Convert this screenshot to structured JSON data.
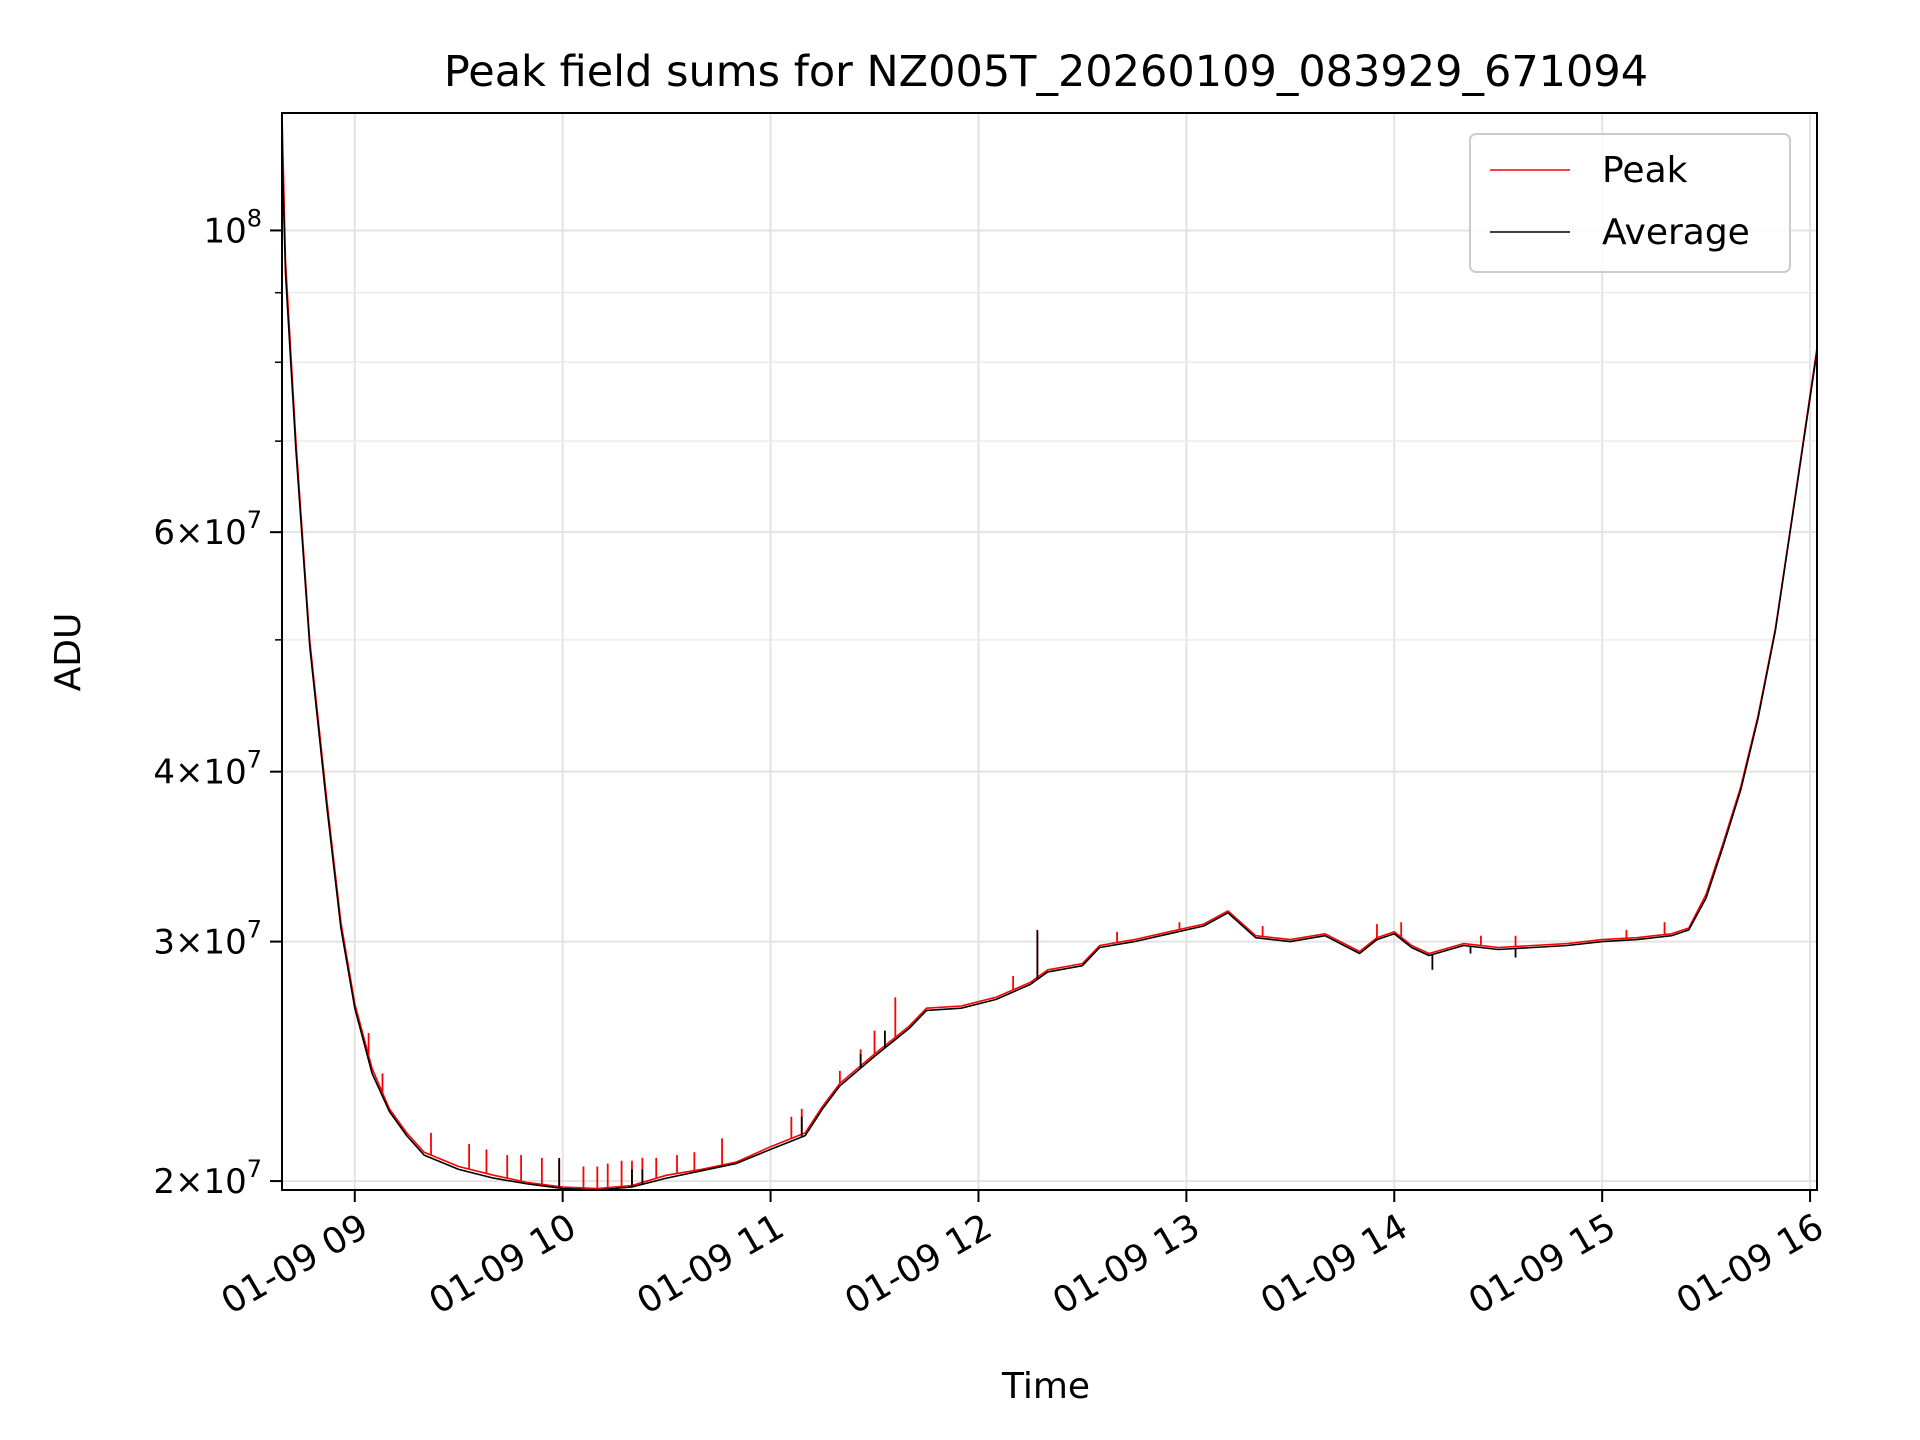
{
  "chart_data": {
    "type": "line",
    "title": "Peak field sums for NZ005T_20260109_083929_671094",
    "xlabel": "Time",
    "ylabel": "ADU",
    "y_scale": "log",
    "grid": true,
    "legend_position": "top-right",
    "xlim": [
      "2026-01-09 08:39",
      "2026-01-09 16:02"
    ],
    "ylim": [
      19700000,
      122000000
    ],
    "x_ticks": [
      {
        "time": "2026-01-09 09:00",
        "label": "01-09 09"
      },
      {
        "time": "2026-01-09 10:00",
        "label": "01-09 10"
      },
      {
        "time": "2026-01-09 11:00",
        "label": "01-09 11"
      },
      {
        "time": "2026-01-09 12:00",
        "label": "01-09 12"
      },
      {
        "time": "2026-01-09 13:00",
        "label": "01-09 13"
      },
      {
        "time": "2026-01-09 14:00",
        "label": "01-09 14"
      },
      {
        "time": "2026-01-09 15:00",
        "label": "01-09 15"
      },
      {
        "time": "2026-01-09 16:00",
        "label": "01-09 16"
      }
    ],
    "y_ticks": [
      {
        "value": 20000000,
        "mant": "2",
        "exp": "7"
      },
      {
        "value": 30000000,
        "mant": "3",
        "exp": "7"
      },
      {
        "value": 40000000,
        "mant": "4",
        "exp": "7"
      },
      {
        "value": 60000000,
        "mant": "6",
        "exp": "7"
      },
      {
        "value": 100000000,
        "mant": "",
        "exp": "8"
      }
    ],
    "y_minor_ticks": [
      50000000,
      70000000,
      80000000,
      90000000
    ],
    "series": [
      {
        "name": "Peak",
        "color": "#ff0000",
        "points": [
          [
            "2026-01-09 08:39",
            122000000
          ],
          [
            "2026-01-09 08:40",
            95000000
          ],
          [
            "2026-01-09 08:43",
            70000000
          ],
          [
            "2026-01-09 08:47",
            50000000
          ],
          [
            "2026-01-09 08:52",
            38000000
          ],
          [
            "2026-01-09 08:56",
            31000000
          ],
          [
            "2026-01-09 09:00",
            27000000
          ],
          [
            "2026-01-09 09:05",
            24200000
          ],
          [
            "2026-01-09 09:10",
            22600000
          ],
          [
            "2026-01-09 09:15",
            21700000
          ],
          [
            "2026-01-09 09:20",
            21000000
          ],
          [
            "2026-01-09 09:30",
            20500000
          ],
          [
            "2026-01-09 09:40",
            20200000
          ],
          [
            "2026-01-09 09:50",
            19950000
          ],
          [
            "2026-01-09 10:00",
            19800000
          ],
          [
            "2026-01-09 10:10",
            19750000
          ],
          [
            "2026-01-09 10:20",
            19850000
          ],
          [
            "2026-01-09 10:30",
            20200000
          ],
          [
            "2026-01-09 10:40",
            20400000
          ],
          [
            "2026-01-09 10:50",
            20650000
          ],
          [
            "2026-01-09 11:00",
            21200000
          ],
          [
            "2026-01-09 11:10",
            21700000
          ],
          [
            "2026-01-09 11:15",
            22700000
          ],
          [
            "2026-01-09 11:20",
            23600000
          ],
          [
            "2026-01-09 11:30",
            24800000
          ],
          [
            "2026-01-09 11:40",
            26000000
          ],
          [
            "2026-01-09 11:45",
            26800000
          ],
          [
            "2026-01-09 11:55",
            26900000
          ],
          [
            "2026-01-09 12:05",
            27300000
          ],
          [
            "2026-01-09 12:15",
            28000000
          ],
          [
            "2026-01-09 12:20",
            28600000
          ],
          [
            "2026-01-09 12:30",
            28900000
          ],
          [
            "2026-01-09 12:35",
            29800000
          ],
          [
            "2026-01-09 12:45",
            30100000
          ],
          [
            "2026-01-09 12:55",
            30500000
          ],
          [
            "2026-01-09 13:05",
            30900000
          ],
          [
            "2026-01-09 13:12",
            31600000
          ],
          [
            "2026-01-09 13:20",
            30300000
          ],
          [
            "2026-01-09 13:30",
            30100000
          ],
          [
            "2026-01-09 13:40",
            30400000
          ],
          [
            "2026-01-09 13:50",
            29500000
          ],
          [
            "2026-01-09 13:55",
            30200000
          ],
          [
            "2026-01-09 14:00",
            30500000
          ],
          [
            "2026-01-09 14:05",
            29800000
          ],
          [
            "2026-01-09 14:10",
            29400000
          ],
          [
            "2026-01-09 14:20",
            29900000
          ],
          [
            "2026-01-09 14:30",
            29700000
          ],
          [
            "2026-01-09 14:40",
            29800000
          ],
          [
            "2026-01-09 14:50",
            29900000
          ],
          [
            "2026-01-09 15:00",
            30100000
          ],
          [
            "2026-01-09 15:10",
            30200000
          ],
          [
            "2026-01-09 15:20",
            30400000
          ],
          [
            "2026-01-09 15:25",
            30700000
          ],
          [
            "2026-01-09 15:30",
            32500000
          ],
          [
            "2026-01-09 15:35",
            35500000
          ],
          [
            "2026-01-09 15:40",
            39000000
          ],
          [
            "2026-01-09 15:45",
            44000000
          ],
          [
            "2026-01-09 15:50",
            51000000
          ],
          [
            "2026-01-09 15:55",
            62000000
          ],
          [
            "2026-01-09 16:02",
            82000000
          ]
        ],
        "spikes": [
          [
            "2026-01-09 09:04",
            25700000
          ],
          [
            "2026-01-09 09:08",
            24000000
          ],
          [
            "2026-01-09 09:22",
            21700000
          ],
          [
            "2026-01-09 09:33",
            21300000
          ],
          [
            "2026-01-09 09:38",
            21100000
          ],
          [
            "2026-01-09 09:44",
            20900000
          ],
          [
            "2026-01-09 09:48",
            20900000
          ],
          [
            "2026-01-09 09:54",
            20800000
          ],
          [
            "2026-01-09 09:59",
            20700000
          ],
          [
            "2026-01-09 10:06",
            20500000
          ],
          [
            "2026-01-09 10:10",
            20500000
          ],
          [
            "2026-01-09 10:13",
            20600000
          ],
          [
            "2026-01-09 10:17",
            20700000
          ],
          [
            "2026-01-09 10:20",
            20700000
          ],
          [
            "2026-01-09 10:23",
            20800000
          ],
          [
            "2026-01-09 10:27",
            20800000
          ],
          [
            "2026-01-09 10:33",
            20900000
          ],
          [
            "2026-01-09 10:38",
            21000000
          ],
          [
            "2026-01-09 10:46",
            21500000
          ],
          [
            "2026-01-09 11:06",
            22300000
          ],
          [
            "2026-01-09 11:09",
            22600000
          ],
          [
            "2026-01-09 11:20",
            24100000
          ],
          [
            "2026-01-09 11:26",
            25000000
          ],
          [
            "2026-01-09 11:30",
            25800000
          ],
          [
            "2026-01-09 11:36",
            27300000
          ],
          [
            "2026-01-09 12:10",
            28300000
          ],
          [
            "2026-01-09 12:17",
            30500000
          ],
          [
            "2026-01-09 12:40",
            30500000
          ],
          [
            "2026-01-09 12:58",
            31000000
          ],
          [
            "2026-01-09 13:22",
            30800000
          ],
          [
            "2026-01-09 13:55",
            30900000
          ],
          [
            "2026-01-09 14:02",
            31000000
          ],
          [
            "2026-01-09 14:25",
            30300000
          ],
          [
            "2026-01-09 14:35",
            30300000
          ],
          [
            "2026-01-09 15:07",
            30600000
          ],
          [
            "2026-01-09 15:18",
            31000000
          ]
        ]
      },
      {
        "name": "Average",
        "color": "#000000",
        "points": [
          [
            "2026-01-09 08:39",
            115000000
          ],
          [
            "2026-01-09 08:40",
            93000000
          ],
          [
            "2026-01-09 08:43",
            69000000
          ],
          [
            "2026-01-09 08:47",
            49500000
          ],
          [
            "2026-01-09 08:52",
            37600000
          ],
          [
            "2026-01-09 08:56",
            30700000
          ],
          [
            "2026-01-09 09:00",
            26800000
          ],
          [
            "2026-01-09 09:05",
            24000000
          ],
          [
            "2026-01-09 09:10",
            22500000
          ],
          [
            "2026-01-09 09:15",
            21600000
          ],
          [
            "2026-01-09 09:20",
            20900000
          ],
          [
            "2026-01-09 09:30",
            20400000
          ],
          [
            "2026-01-09 09:40",
            20100000
          ],
          [
            "2026-01-09 09:50",
            19900000
          ],
          [
            "2026-01-09 10:00",
            19750000
          ],
          [
            "2026-01-09 10:10",
            19700000
          ],
          [
            "2026-01-09 10:20",
            19800000
          ],
          [
            "2026-01-09 10:30",
            20100000
          ],
          [
            "2026-01-09 10:40",
            20350000
          ],
          [
            "2026-01-09 10:50",
            20600000
          ],
          [
            "2026-01-09 11:00",
            21100000
          ],
          [
            "2026-01-09 11:10",
            21600000
          ],
          [
            "2026-01-09 11:15",
            22600000
          ],
          [
            "2026-01-09 11:20",
            23500000
          ],
          [
            "2026-01-09 11:30",
            24700000
          ],
          [
            "2026-01-09 11:40",
            25900000
          ],
          [
            "2026-01-09 11:45",
            26700000
          ],
          [
            "2026-01-09 11:55",
            26800000
          ],
          [
            "2026-01-09 12:05",
            27200000
          ],
          [
            "2026-01-09 12:15",
            27900000
          ],
          [
            "2026-01-09 12:20",
            28500000
          ],
          [
            "2026-01-09 12:30",
            28800000
          ],
          [
            "2026-01-09 12:35",
            29700000
          ],
          [
            "2026-01-09 12:45",
            30000000
          ],
          [
            "2026-01-09 12:55",
            30400000
          ],
          [
            "2026-01-09 13:05",
            30800000
          ],
          [
            "2026-01-09 13:12",
            31500000
          ],
          [
            "2026-01-09 13:20",
            30200000
          ],
          [
            "2026-01-09 13:30",
            30000000
          ],
          [
            "2026-01-09 13:40",
            30300000
          ],
          [
            "2026-01-09 13:50",
            29400000
          ],
          [
            "2026-01-09 13:55",
            30100000
          ],
          [
            "2026-01-09 14:00",
            30400000
          ],
          [
            "2026-01-09 14:05",
            29700000
          ],
          [
            "2026-01-09 14:10",
            29300000
          ],
          [
            "2026-01-09 14:20",
            29800000
          ],
          [
            "2026-01-09 14:30",
            29600000
          ],
          [
            "2026-01-09 14:40",
            29700000
          ],
          [
            "2026-01-09 14:50",
            29800000
          ],
          [
            "2026-01-09 15:00",
            30000000
          ],
          [
            "2026-01-09 15:10",
            30100000
          ],
          [
            "2026-01-09 15:20",
            30300000
          ],
          [
            "2026-01-09 15:25",
            30600000
          ],
          [
            "2026-01-09 15:30",
            32300000
          ],
          [
            "2026-01-09 15:35",
            35300000
          ],
          [
            "2026-01-09 15:40",
            38800000
          ],
          [
            "2026-01-09 15:45",
            43800000
          ],
          [
            "2026-01-09 15:50",
            50800000
          ],
          [
            "2026-01-09 15:55",
            61800000
          ],
          [
            "2026-01-09 16:02",
            81500000
          ]
        ],
        "spikes": [
          [
            "2026-01-09 09:59",
            20800000
          ],
          [
            "2026-01-09 10:20",
            20400000
          ],
          [
            "2026-01-09 10:23",
            20400000
          ],
          [
            "2026-01-09 11:09",
            22300000
          ],
          [
            "2026-01-09 11:26",
            24800000
          ],
          [
            "2026-01-09 11:33",
            25800000
          ],
          [
            "2026-01-09 12:17",
            30600000
          ],
          [
            "2026-01-09 14:11",
            28600000
          ],
          [
            "2026-01-09 14:22",
            29400000
          ],
          [
            "2026-01-09 14:35",
            29200000
          ]
        ]
      }
    ],
    "legend": [
      {
        "name": "Peak",
        "color": "#ff0000"
      },
      {
        "name": "Average",
        "color": "#000000"
      }
    ]
  }
}
